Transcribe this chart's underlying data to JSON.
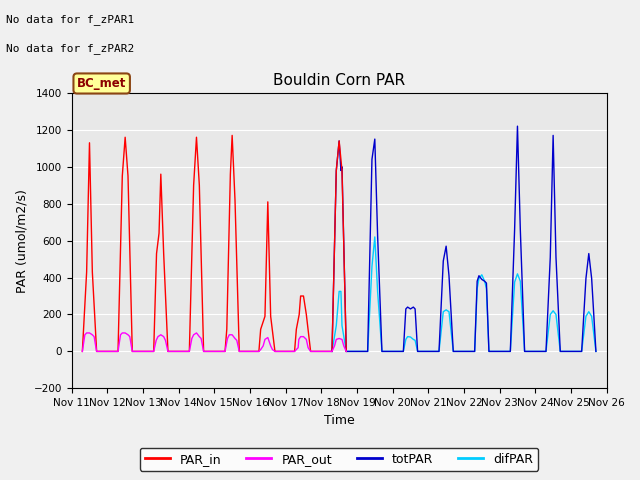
{
  "title": "Bouldin Corn PAR",
  "xlabel": "Time",
  "ylabel": "PAR (umol/m2/s)",
  "ylim": [
    -200,
    1400
  ],
  "yticks": [
    -200,
    0,
    200,
    400,
    600,
    800,
    1000,
    1200,
    1400
  ],
  "xtick_labels": [
    "Nov 11",
    "Nov 12",
    "Nov 13",
    "Nov 14",
    "Nov 15",
    "Nov 16",
    "Nov 17",
    "Nov 18",
    "Nov 19",
    "Nov 20",
    "Nov 21",
    "Nov 22",
    "Nov 23",
    "Nov 24",
    "Nov 25",
    "Nov 26"
  ],
  "no_data_text1": "No data for f_zPAR1",
  "no_data_text2": "No data for f_zPAR2",
  "legend_label": "BC_met",
  "colors": {
    "PAR_in": "#ff0000",
    "PAR_out": "#ff00ff",
    "totPAR": "#0000cc",
    "difPAR": "#00ccff"
  },
  "background_color": "#e8e8e8",
  "grid_color": "#ffffff",
  "fig_facecolor": "#f0f0f0",
  "PAR_in_x": [
    0.3,
    0.42,
    0.5,
    0.58,
    0.7,
    1.3,
    1.42,
    1.5,
    1.58,
    1.7,
    2.3,
    2.38,
    2.45,
    2.5,
    2.58,
    2.7,
    3.3,
    3.42,
    3.5,
    3.58,
    3.7,
    4.3,
    4.35,
    4.45,
    4.5,
    4.58,
    4.7,
    5.25,
    5.3,
    5.42,
    5.5,
    5.58,
    5.7,
    6.25,
    6.3,
    6.38,
    6.42,
    6.5,
    6.58,
    6.7,
    7.3,
    7.42,
    7.5,
    7.58,
    7.7
  ],
  "PAR_in_y": [
    0,
    430,
    1130,
    430,
    0,
    0,
    950,
    1160,
    950,
    0,
    0,
    530,
    640,
    960,
    530,
    0,
    0,
    900,
    1160,
    900,
    0,
    0,
    120,
    960,
    1170,
    820,
    0,
    0,
    120,
    190,
    810,
    190,
    0,
    0,
    120,
    200,
    300,
    300,
    200,
    0,
    0,
    980,
    1140,
    980,
    0
  ],
  "PAR_out_x": [
    0.3,
    0.37,
    0.42,
    0.5,
    0.58,
    0.63,
    0.7,
    1.3,
    1.37,
    1.42,
    1.5,
    1.58,
    1.63,
    1.7,
    2.3,
    2.37,
    2.42,
    2.5,
    2.58,
    2.63,
    2.7,
    3.3,
    3.37,
    3.42,
    3.5,
    3.58,
    3.63,
    3.7,
    4.3,
    4.37,
    4.42,
    4.5,
    4.58,
    4.63,
    4.7,
    5.25,
    5.3,
    5.37,
    5.42,
    5.5,
    5.58,
    5.63,
    5.7,
    6.25,
    6.3,
    6.35,
    6.37,
    6.42,
    6.5,
    6.58,
    6.63,
    6.7,
    7.3,
    7.37,
    7.42,
    7.5,
    7.58,
    7.63,
    7.7
  ],
  "PAR_out_y": [
    0,
    90,
    100,
    100,
    90,
    80,
    0,
    0,
    90,
    100,
    100,
    90,
    80,
    0,
    0,
    60,
    80,
    90,
    80,
    60,
    0,
    0,
    70,
    90,
    100,
    80,
    70,
    0,
    0,
    70,
    90,
    90,
    70,
    60,
    0,
    0,
    10,
    30,
    65,
    75,
    30,
    10,
    0,
    0,
    10,
    20,
    65,
    80,
    80,
    65,
    20,
    0,
    0,
    30,
    65,
    70,
    65,
    30,
    0
  ],
  "totPAR_x": [
    7.3,
    7.42,
    7.5,
    7.55,
    7.58,
    7.7,
    8.3,
    8.42,
    8.5,
    8.58,
    8.7,
    9.3,
    9.37,
    9.42,
    9.5,
    9.58,
    9.63,
    9.7,
    10.3,
    10.42,
    10.5,
    10.58,
    10.7,
    11.3,
    11.37,
    11.42,
    11.5,
    11.58,
    11.63,
    11.7,
    12.3,
    12.42,
    12.5,
    12.58,
    12.7,
    13.3,
    13.42,
    13.5,
    13.58,
    13.7,
    14.3,
    14.42,
    14.5,
    14.58,
    14.7
  ],
  "totPAR_y": [
    0,
    980,
    1140,
    980,
    1000,
    0,
    0,
    1040,
    1150,
    620,
    0,
    0,
    230,
    240,
    230,
    240,
    230,
    0,
    0,
    490,
    570,
    410,
    0,
    0,
    380,
    410,
    390,
    380,
    370,
    0,
    0,
    660,
    1220,
    660,
    0,
    0,
    510,
    1170,
    510,
    0,
    0,
    395,
    530,
    395,
    0
  ],
  "difPAR_x": [
    7.3,
    7.42,
    7.5,
    7.55,
    7.58,
    7.7,
    8.3,
    8.42,
    8.5,
    8.58,
    8.7,
    9.3,
    9.37,
    9.42,
    9.5,
    9.58,
    9.63,
    9.7,
    10.3,
    10.42,
    10.5,
    10.58,
    10.7,
    11.3,
    11.37,
    11.42,
    11.5,
    11.58,
    11.63,
    11.7,
    12.3,
    12.42,
    12.5,
    12.58,
    12.7,
    13.3,
    13.42,
    13.5,
    13.58,
    13.7,
    14.3,
    14.42,
    14.5,
    14.58,
    14.7
  ],
  "difPAR_y": [
    0,
    140,
    325,
    325,
    140,
    0,
    0,
    460,
    620,
    320,
    0,
    0,
    65,
    80,
    78,
    65,
    60,
    0,
    0,
    215,
    225,
    215,
    0,
    0,
    340,
    395,
    415,
    380,
    340,
    0,
    0,
    375,
    420,
    380,
    0,
    0,
    200,
    220,
    200,
    0,
    0,
    190,
    215,
    190,
    0
  ]
}
